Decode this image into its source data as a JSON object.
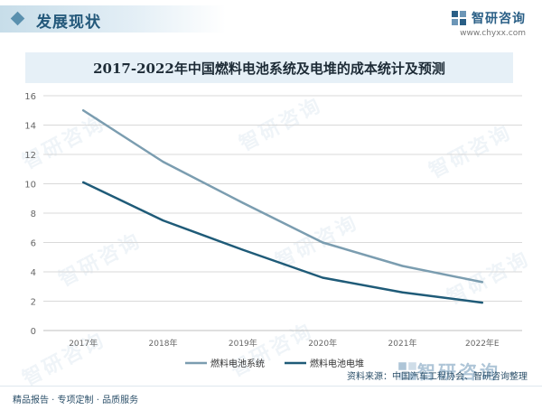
{
  "header": {
    "section_title": "发展现状",
    "brand_name": "智研咨询",
    "brand_url": "www.chyxx.com"
  },
  "colors": {
    "series_system": "#7b9db0",
    "series_stack": "#1f5b78",
    "axis": "#666666",
    "grid": "#d9d9d9"
  },
  "chart_data": {
    "type": "line",
    "title": "2017-2022年中国燃料电池系统及电堆的成本统计及预测",
    "categories": [
      "2017年",
      "2018年",
      "2019年",
      "2020年",
      "2021年",
      "2022年E"
    ],
    "yticks": [
      "0",
      "2",
      "4",
      "6",
      "8",
      "10",
      "12",
      "14",
      "16"
    ],
    "ylim": [
      0,
      16
    ],
    "grid": true,
    "legend_position": "bottom",
    "series": [
      {
        "name": "燃料电池系统",
        "values": [
          15.0,
          11.5,
          8.7,
          6.0,
          4.4,
          3.3
        ]
      },
      {
        "name": "燃料电池电堆",
        "values": [
          10.1,
          7.5,
          5.5,
          3.6,
          2.6,
          1.9
        ]
      }
    ]
  },
  "footer": {
    "left_text": "精品报告 · 专项定制 · 品质服务",
    "source_text": "资料来源：中国汽车工程协会、智研咨询整理",
    "watermark_text": "智研咨询"
  }
}
